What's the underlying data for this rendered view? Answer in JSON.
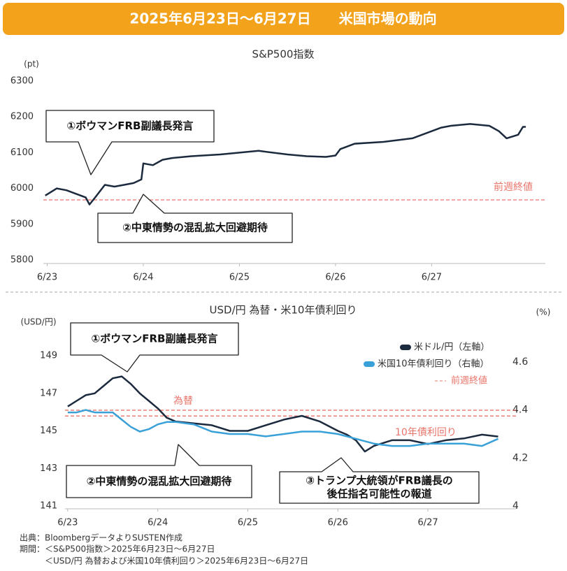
{
  "header": {
    "title": "2025年6月23日～6月27日　　米国市場の動向"
  },
  "chart_data": [
    {
      "type": "line",
      "title": "S&P500指数",
      "ylabel": "(pt)",
      "color": "#1c2a3e",
      "x": [
        -0.02,
        0.1,
        0.2,
        0.3,
        0.4,
        0.44,
        0.5,
        0.6,
        0.7,
        0.8,
        0.9,
        0.98,
        1.0,
        1.1,
        1.2,
        1.3,
        1.5,
        1.8,
        2.0,
        2.2,
        2.5,
        2.7,
        2.9,
        3.0,
        3.05,
        3.2,
        3.5,
        3.8,
        4.0,
        4.1,
        4.2,
        4.4,
        4.6,
        4.7,
        4.78,
        4.9,
        4.95,
        4.98
      ],
      "values": [
        5980,
        6000,
        5995,
        5985,
        5975,
        5955,
        5975,
        6010,
        6005,
        6010,
        6015,
        6025,
        6070,
        6065,
        6080,
        6085,
        6090,
        6095,
        6100,
        6105,
        6095,
        6090,
        6088,
        6092,
        6110,
        6125,
        6130,
        6140,
        6160,
        6170,
        6175,
        6180,
        6175,
        6160,
        6140,
        6150,
        6172,
        6172
      ],
      "xlim": [
        -0.04,
        5.11
      ],
      "xticks": [
        {
          "value": 0,
          "label": "6/23"
        },
        {
          "value": 1,
          "label": "6/24"
        },
        {
          "value": 2,
          "label": "6/25"
        },
        {
          "value": 3,
          "label": "6/26"
        },
        {
          "value": 4,
          "label": "6/27"
        }
      ],
      "ylim": [
        5800,
        6300
      ],
      "yticks": [
        5800,
        5900,
        6000,
        6100,
        6200,
        6300
      ],
      "references": [
        {
          "label": "前週終値",
          "value": 5968,
          "color": "#e8746a"
        }
      ],
      "annotations": [
        {
          "lines": [
            "①ボウマンFRB副議長発言"
          ]
        },
        {
          "lines": [
            "②中東情勢の混乱拡大回避期待"
          ]
        }
      ]
    },
    {
      "type": "line",
      "title": "USD/円 為替・米10年債利回り",
      "ylabel": "(USD/円)",
      "y2label": "(%)",
      "x": [
        0,
        0.1,
        0.2,
        0.3,
        0.4,
        0.5,
        0.6,
        0.7,
        0.8,
        0.9,
        1.0,
        1.1,
        1.2,
        1.4,
        1.6,
        1.8,
        2.0,
        2.2,
        2.4,
        2.6,
        2.8,
        3.0,
        3.1,
        3.2,
        3.3,
        3.4,
        3.6,
        3.8,
        4.0,
        4.2,
        4.4,
        4.6,
        4.78
      ],
      "series": [
        {
          "name": "米ドル/円（左軸）",
          "color": "#1c2a3e",
          "values": [
            146.3,
            146.6,
            146.9,
            147.0,
            147.4,
            147.8,
            147.9,
            147.5,
            147.0,
            146.6,
            146.2,
            145.7,
            145.5,
            145.4,
            145.3,
            145.0,
            145.0,
            145.3,
            145.6,
            145.8,
            145.5,
            145.0,
            144.8,
            144.5,
            143.9,
            144.2,
            144.5,
            144.5,
            144.3,
            144.5,
            144.6,
            144.8,
            144.7
          ]
        },
        {
          "name": "米国10年債利回り（右軸）",
          "color": "#3aa0d8",
          "axis": "y2",
          "values": [
            4.39,
            4.39,
            4.4,
            4.39,
            4.39,
            4.39,
            4.36,
            4.33,
            4.31,
            4.32,
            4.34,
            4.35,
            4.35,
            4.34,
            4.31,
            4.3,
            4.3,
            4.29,
            4.3,
            4.31,
            4.31,
            4.3,
            4.29,
            4.28,
            4.27,
            4.26,
            4.25,
            4.25,
            4.26,
            4.26,
            4.26,
            4.25,
            4.28
          ]
        }
      ],
      "xlim": [
        -0.03,
        4.9
      ],
      "xticks": [
        {
          "value": 0,
          "label": "6/23"
        },
        {
          "value": 1,
          "label": "6/24"
        },
        {
          "value": 2,
          "label": "6/25"
        },
        {
          "value": 3,
          "label": "6/26"
        },
        {
          "value": 4,
          "label": "6/27"
        }
      ],
      "ylim": [
        141,
        149
      ],
      "yticks": [
        141,
        143,
        145,
        147,
        149
      ],
      "y2lim": [
        4,
        4.626
      ],
      "y2ticks": [
        4,
        4.2,
        4.4,
        4.6
      ],
      "reference_legend": "前週終値",
      "references": [
        {
          "label": "為替",
          "value": 146.1,
          "color": "#e8746a"
        },
        {
          "label": "10年債利回り",
          "value": 4.375,
          "axis": "y2",
          "color": "#e8746a"
        }
      ],
      "annotations": [
        {
          "lines": [
            "①ボウマンFRB副議長発言"
          ]
        },
        {
          "lines": [
            "②中東情勢の混乱拡大回避期待"
          ]
        },
        {
          "lines": [
            "③トランプ大統領がFRB議長の",
            "後任指名可能性の報道"
          ]
        }
      ]
    }
  ],
  "footer": {
    "lines": [
      "出典：BloombergデータよりSUSTEN作成",
      "期間：＜S&P500指数＞2025年6月23日～6月27日",
      "　　　＜USD/円 為替および米国10年債利回り＞2025年6月23日～6月27日"
    ]
  }
}
